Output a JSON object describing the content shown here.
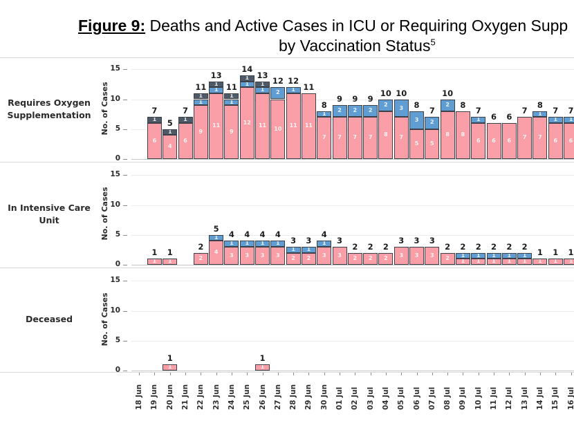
{
  "figure": {
    "label": "Figure 9:",
    "title_rest": " Deaths and Active Cases in ICU or Requiring Oxygen Supp",
    "title_line2": "by Vaccination Status",
    "footnote_marker": "5"
  },
  "colors": {
    "pink": "#FA9EA7",
    "blue": "#5F9DD2",
    "dark_navy": "#4F5A68",
    "bar_border": "#3C4048",
    "gridline": "#ECECEC",
    "zero_line": "#C6C6C6",
    "divider": "#D8D8D8",
    "tick": "#8A8A8A",
    "total_label": "#1C1C1C",
    "text": "#2B2B2B"
  },
  "chart_data": {
    "type": "bar",
    "stacked": true,
    "grid": true,
    "legend": "none",
    "ylabel": "No. of Cases",
    "yticks": [
      0,
      5,
      10,
      15
    ],
    "ylim": [
      0,
      15
    ],
    "categories": [
      "18 Jun",
      "19 Jun",
      "20 Jun",
      "21 Jun",
      "22 Jun",
      "23 Jun",
      "24 Jun",
      "25 Jun",
      "26 Jun",
      "27 Jun",
      "28 Jun",
      "29 Jun",
      "30 Jun",
      "01 Jul",
      "02 Jul",
      "03 Jul",
      "04 Jul",
      "05 Jul",
      "06 Jul",
      "07 Jul",
      "08 Jul",
      "09 Jul",
      "10 Jul",
      "11 Jul",
      "12 Jul",
      "13 Jul",
      "14 Jul",
      "15 Jul",
      "16 Jul"
    ],
    "panels": [
      {
        "label": "Requires Oxygen Supplementation",
        "label_lines": [
          "Requires Oxygen",
          "Supplementation"
        ],
        "series": [
          {
            "name": "pink",
            "color": "#FA9EA7",
            "values": [
              0,
              6,
              4,
              6,
              9,
              11,
              9,
              12,
              11,
              10,
              11,
              11,
              7,
              7,
              7,
              7,
              8,
              7,
              5,
              5,
              8,
              8,
              6,
              6,
              6,
              7,
              7,
              6,
              6
            ]
          },
          {
            "name": "blue",
            "color": "#5F9DD2",
            "values": [
              0,
              0,
              0,
              0,
              1,
              1,
              1,
              1,
              1,
              2,
              1,
              0,
              1,
              2,
              2,
              2,
              2,
              3,
              3,
              2,
              2,
              0,
              1,
              0,
              0,
              0,
              1,
              1,
              1
            ]
          },
          {
            "name": "dark",
            "color": "#4F5A68",
            "values": [
              0,
              1,
              1,
              1,
              1,
              1,
              1,
              1,
              1,
              0,
              0,
              0,
              0,
              0,
              0,
              0,
              0,
              0,
              0,
              0,
              0,
              0,
              0,
              0,
              0,
              0,
              0,
              0,
              0
            ]
          }
        ],
        "totals": [
          0,
          7,
          5,
          7,
          11,
          13,
          11,
          14,
          13,
          12,
          12,
          11,
          8,
          9,
          9,
          9,
          10,
          10,
          8,
          7,
          10,
          8,
          7,
          6,
          6,
          7,
          8,
          7,
          7
        ]
      },
      {
        "label": "In Intensive Care Unit",
        "label_lines": [
          "In Intensive Care",
          "Unit"
        ],
        "series": [
          {
            "name": "pink",
            "color": "#FA9EA7",
            "values": [
              0,
              1,
              1,
              0,
              2,
              4,
              3,
              3,
              3,
              3,
              2,
              2,
              3,
              3,
              2,
              2,
              2,
              3,
              3,
              3,
              2,
              1,
              1,
              1,
              1,
              1,
              1,
              1,
              1
            ]
          },
          {
            "name": "blue",
            "color": "#5F9DD2",
            "values": [
              0,
              0,
              0,
              0,
              0,
              1,
              1,
              1,
              1,
              1,
              1,
              1,
              1,
              0,
              0,
              0,
              0,
              0,
              0,
              0,
              0,
              1,
              1,
              1,
              1,
              1,
              0,
              0,
              0
            ]
          },
          {
            "name": "dark",
            "color": "#4F5A68",
            "values": [
              0,
              0,
              0,
              0,
              0,
              0,
              0,
              0,
              0,
              0,
              0,
              0,
              0,
              0,
              0,
              0,
              0,
              0,
              0,
              0,
              0,
              0,
              0,
              0,
              0,
              0,
              0,
              0,
              0
            ]
          }
        ],
        "totals": [
          0,
          1,
          1,
          0,
          2,
          5,
          4,
          4,
          4,
          4,
          3,
          3,
          4,
          3,
          2,
          2,
          2,
          3,
          3,
          3,
          2,
          2,
          2,
          2,
          2,
          2,
          1,
          1,
          1
        ]
      },
      {
        "label": "Deceased",
        "label_lines": [
          "Deceased"
        ],
        "series": [
          {
            "name": "pink",
            "color": "#FA9EA7",
            "values": [
              0,
              0,
              1,
              0,
              0,
              0,
              0,
              0,
              1,
              0,
              0,
              0,
              0,
              0,
              0,
              0,
              0,
              0,
              0,
              0,
              0,
              0,
              0,
              0,
              0,
              0,
              0,
              0,
              0
            ]
          },
          {
            "name": "blue",
            "color": "#5F9DD2",
            "values": [
              0,
              0,
              0,
              0,
              0,
              0,
              0,
              0,
              0,
              0,
              0,
              0,
              0,
              0,
              0,
              0,
              0,
              0,
              0,
              0,
              0,
              0,
              0,
              0,
              0,
              0,
              0,
              0,
              0
            ]
          },
          {
            "name": "dark",
            "color": "#4F5A68",
            "values": [
              0,
              0,
              0,
              0,
              0,
              0,
              0,
              0,
              0,
              0,
              0,
              0,
              0,
              0,
              0,
              0,
              0,
              0,
              0,
              0,
              0,
              0,
              0,
              0,
              0,
              0,
              0,
              0,
              0
            ]
          }
        ],
        "totals": [
          0,
          0,
          1,
          0,
          0,
          0,
          0,
          0,
          1,
          0,
          0,
          0,
          0,
          0,
          0,
          0,
          0,
          0,
          0,
          0,
          0,
          0,
          0,
          0,
          0,
          0,
          0,
          0,
          0
        ]
      }
    ]
  }
}
